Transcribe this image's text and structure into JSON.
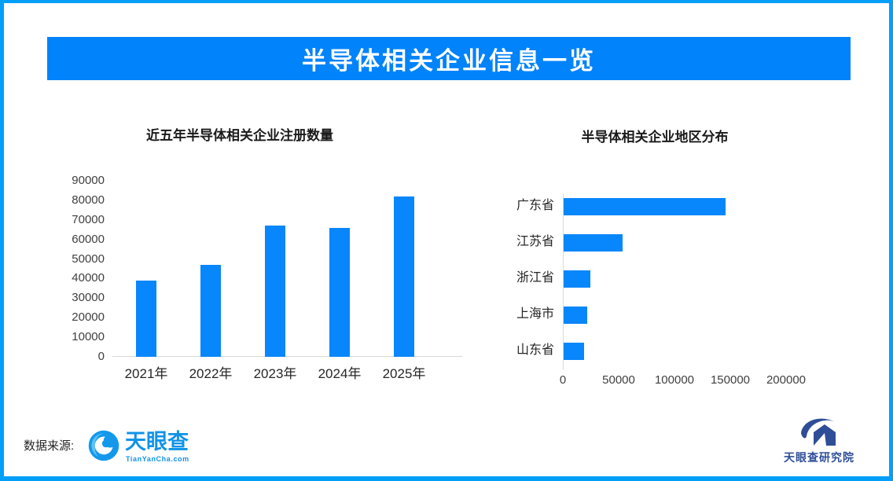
{
  "header": {
    "title": "半导体相关企业信息一览",
    "banner_color": "#0183FB",
    "border_color": "#019FF8"
  },
  "chart_data": [
    {
      "type": "bar",
      "title": "近五年半导体相关企业注册数量",
      "categories": [
        "2021年",
        "2022年",
        "2023年",
        "2024年",
        "2025年"
      ],
      "values": [
        39000,
        47000,
        67000,
        66000,
        82000
      ],
      "xlabel": "",
      "ylabel": "",
      "ylim": [
        0,
        90000
      ],
      "ytick_step": 10000,
      "bar_color": "#0886FB",
      "grid": false,
      "legend": "none"
    },
    {
      "type": "bar-horizontal",
      "title": "半导体相关企业地区分布",
      "categories": [
        "广东省",
        "江苏省",
        "浙江省",
        "上海市",
        "山东省"
      ],
      "values": [
        145000,
        53000,
        24000,
        21000,
        18000
      ],
      "xlabel": "",
      "ylabel": "",
      "xlim": [
        0,
        230000
      ],
      "xticks": [
        0,
        50000,
        100000,
        150000,
        200000
      ],
      "bar_color": "#0886FB",
      "grid": false,
      "legend": "none"
    }
  ],
  "footer": {
    "source_label": "数据来源:",
    "logo_text": "天眼查",
    "logo_subtext": "TianYanCha.com",
    "logo_color": "#1193E8",
    "institute_text": "天眼查研究院",
    "institute_color": "#2E4E97"
  }
}
